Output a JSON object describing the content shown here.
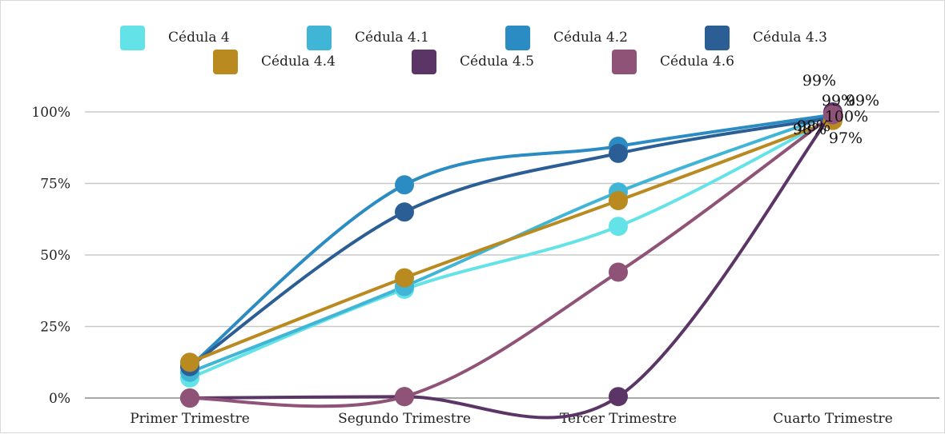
{
  "chart_data": {
    "type": "line",
    "title": "",
    "xlabel": "",
    "ylabel": "",
    "categories": [
      "Primer Trimestre",
      "Segundo Trimestre",
      "Tercer Trimestre",
      "Cuarto Trimestre"
    ],
    "y_tick_labels": [
      "0%",
      "25%",
      "50%",
      "75%",
      "100%"
    ],
    "y_ticks": [
      0,
      25,
      50,
      75,
      100
    ],
    "ylim": [
      0,
      100
    ],
    "grid": true,
    "legend_position": "top",
    "smooth": true,
    "series": [
      {
        "name": "Cédula 4",
        "color": "#63E3E8",
        "values": [
          7,
          38,
          60,
          98
        ],
        "end_label": "98%"
      },
      {
        "name": "Cédula 4.1",
        "color": "#41B5D6",
        "values": [
          9,
          39,
          72,
          99
        ],
        "end_label": "99%"
      },
      {
        "name": "Cédula 4.2",
        "color": "#2B8BC3",
        "values": [
          11,
          74.5,
          88,
          99
        ],
        "end_label": "99%"
      },
      {
        "name": "Cédula 4.3",
        "color": "#2B5E95",
        "values": [
          11,
          65,
          85.5,
          98
        ],
        "end_label": "98%"
      },
      {
        "name": "Cédula 4.4",
        "color": "#B98A20",
        "values": [
          12.5,
          42,
          69,
          97
        ],
        "end_label": "97%"
      },
      {
        "name": "Cédula 4.5",
        "color": "#5A3566",
        "values": [
          0,
          0.5,
          0.5,
          100
        ],
        "end_label": "100%"
      },
      {
        "name": "Cédula 4.6",
        "color": "#8E5377",
        "values": [
          0,
          0.5,
          44,
          99
        ],
        "end_label": "99%"
      }
    ]
  }
}
